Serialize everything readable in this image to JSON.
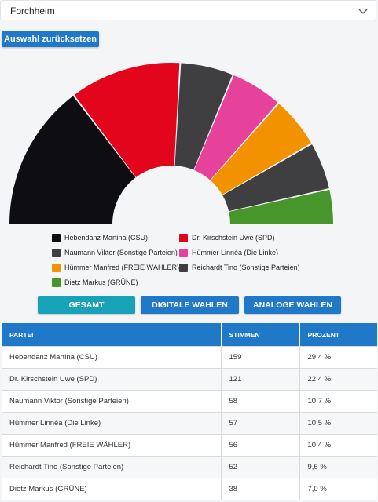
{
  "location_select": {
    "value": "Forchheim"
  },
  "reset_button": {
    "label": "Auswahl zurücksetzen"
  },
  "chart_data": {
    "type": "pie",
    "variant": "semicircle-parliament",
    "categories": [
      "Hebendanz Martina (CSU)",
      "Dr. Kirschstein Uwe (SPD)",
      "Naumann Viktor (Sonstige Parteien)",
      "Hümmer Linnéa (Die Linke)",
      "Hümmer Manfred (FREIE WÄHLER)",
      "Reichardt Tino (Sonstige Parteien)",
      "Dietz Markus (GRÜNE)"
    ],
    "values": [
      159,
      121,
      58,
      57,
      56,
      52,
      38
    ],
    "colors": [
      "#0d0d12",
      "#e3051b",
      "#3f3f41",
      "#e6419b",
      "#f39200",
      "#3f3f41",
      "#46962b"
    ]
  },
  "legend": [
    {
      "label": "Hebendanz Martina (CSU)",
      "color": "#0d0d12"
    },
    {
      "label": "Dr. Kirschstein Uwe (SPD)",
      "color": "#e3051b"
    },
    {
      "label": "Naumann Viktor (Sonstige Parteien)",
      "color": "#3f3f41"
    },
    {
      "label": "Hümmer Linnéa (Die Linke)",
      "color": "#e6419b"
    },
    {
      "label": "Hümmer Manfred (FREIE WÄHLER)",
      "color": "#f39200"
    },
    {
      "label": "Reichardt Tino (Sonstige Parteien)",
      "color": "#3f3f41"
    },
    {
      "label": "Dietz Markus (GRÜNE)",
      "color": "#46962b"
    }
  ],
  "tabs": [
    {
      "label": "GESAMT",
      "color": "#17a2b8"
    },
    {
      "label": "DIGITALE WAHLEN",
      "color": "#1f78c8"
    },
    {
      "label": "ANALOGE WAHLEN",
      "color": "#1f78c8"
    }
  ],
  "table": {
    "headers": [
      "PARTEI",
      "STIMMEN",
      "PROZENT"
    ],
    "rows": [
      [
        "Hebendanz Martina (CSU)",
        "159",
        "29,4 %"
      ],
      [
        "Dr. Kirschstein Uwe (SPD)",
        "121",
        "22,4 %"
      ],
      [
        "Naumann Viktor (Sonstige Parteien)",
        "58",
        "10,7 %"
      ],
      [
        "Hümmer Linnéa (Die Linke)",
        "57",
        "10,5 %"
      ],
      [
        "Hümmer Manfred (FREIE WÄHLER)",
        "56",
        "10,4 %"
      ],
      [
        "Reichardt Tino (Sonstige Parteien)",
        "52",
        "9,6 %"
      ],
      [
        "Dietz Markus (GRÜNE)",
        "38",
        "7,0 %"
      ]
    ]
  }
}
